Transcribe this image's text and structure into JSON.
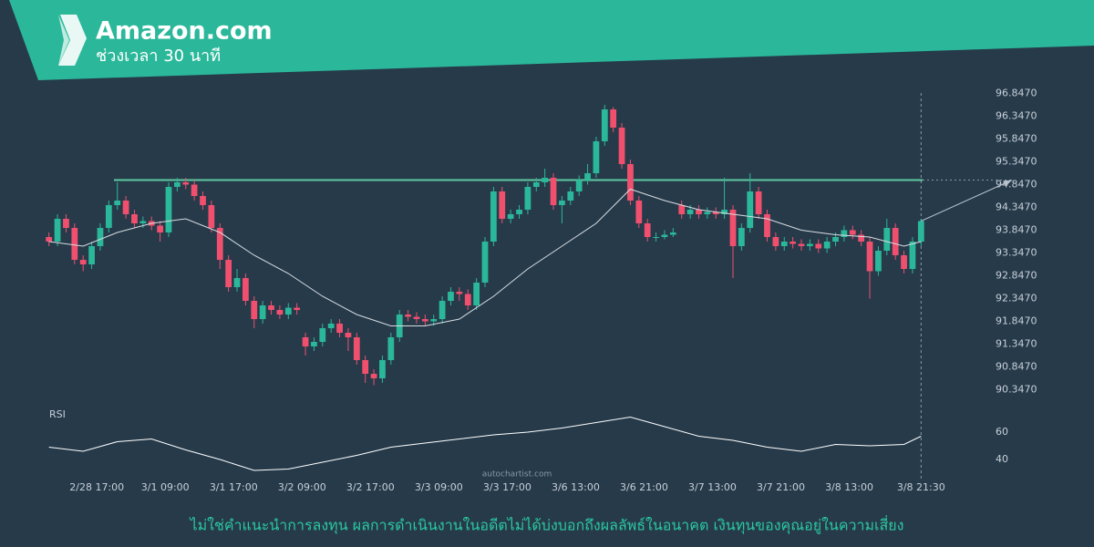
{
  "chart_data": {
    "type": "candlestick",
    "title": "Amazon.com",
    "subtitle": "ช่วงเวลา 30 นาที",
    "disclaimer": "ไม่ใช่คำแนะนำการลงทุน ผลการดำเนินงานในอดีตไม่ได้บ่งบอกถึงผลลัพธ์ในอนาคต เงินทุนของคุณอยู่ในความเสี่ยง",
    "watermark": "autochartist.com",
    "up_color": "#2bb89a",
    "down_color": "#f0506e",
    "open": [
      93.7,
      93.6,
      94.1,
      93.9,
      93.2,
      93.1,
      93.5,
      93.9,
      94.4,
      94.5,
      94.2,
      94.0,
      94.05,
      93.95,
      93.8,
      94.8,
      94.9,
      94.85,
      94.6,
      94.4,
      93.9,
      93.2,
      92.6,
      92.8,
      92.3,
      91.9,
      92.2,
      92.1,
      92.0,
      92.15,
      91.5,
      91.3,
      91.4,
      91.7,
      91.8,
      91.6,
      91.5,
      91.0,
      90.7,
      90.6,
      91.0,
      91.5,
      92.0,
      91.95,
      91.9,
      91.85,
      91.9,
      92.3,
      92.5,
      92.45,
      92.2,
      92.7,
      93.6,
      94.7,
      94.1,
      94.2,
      94.3,
      94.8,
      94.9,
      95.0,
      94.4,
      94.5,
      94.7,
      94.95,
      95.1,
      95.8,
      96.5,
      96.1,
      95.3,
      94.5,
      94.0,
      93.7,
      93.7,
      93.75,
      94.4,
      94.2,
      94.3,
      94.2,
      94.25,
      94.2,
      94.3,
      93.5,
      93.9,
      94.7,
      94.2,
      93.7,
      93.5,
      93.6,
      93.55,
      93.5,
      93.55,
      93.45,
      93.6,
      93.7,
      93.85,
      93.75,
      93.6,
      92.95,
      93.4,
      93.9,
      93.3,
      93.0,
      93.6
    ],
    "high": [
      93.8,
      94.2,
      94.2,
      94.0,
      93.3,
      93.6,
      94.0,
      94.5,
      94.9,
      94.6,
      94.3,
      94.15,
      94.15,
      94.05,
      94.9,
      95.0,
      95.0,
      94.95,
      94.7,
      94.5,
      94.0,
      93.3,
      93.0,
      92.9,
      92.4,
      92.3,
      92.3,
      92.2,
      92.25,
      92.25,
      91.6,
      91.5,
      91.8,
      91.9,
      91.9,
      91.7,
      91.6,
      91.1,
      90.8,
      91.1,
      91.6,
      92.1,
      92.1,
      92.05,
      92.0,
      92.0,
      92.4,
      92.6,
      92.6,
      92.55,
      92.8,
      93.7,
      94.8,
      94.8,
      94.3,
      94.4,
      94.9,
      95.0,
      95.2,
      95.1,
      94.6,
      94.8,
      95.05,
      95.3,
      95.9,
      96.6,
      96.55,
      96.2,
      95.4,
      94.6,
      94.1,
      93.8,
      93.85,
      93.9,
      94.5,
      94.4,
      94.4,
      94.35,
      94.35,
      95.0,
      94.4,
      94.0,
      95.1,
      94.8,
      94.3,
      93.8,
      93.7,
      93.7,
      93.65,
      93.65,
      93.65,
      93.7,
      93.8,
      93.95,
      93.95,
      93.85,
      93.7,
      93.5,
      94.1,
      94.0,
      93.4,
      93.7,
      94.1
    ],
    "low": [
      93.5,
      93.5,
      93.8,
      93.1,
      92.95,
      93.0,
      93.4,
      93.8,
      94.3,
      94.1,
      93.9,
      93.9,
      93.85,
      93.6,
      93.7,
      94.7,
      94.75,
      94.5,
      94.3,
      93.8,
      93.0,
      92.5,
      92.5,
      92.2,
      91.7,
      91.8,
      92.0,
      91.9,
      91.9,
      92.0,
      91.1,
      91.2,
      91.3,
      91.6,
      91.5,
      91.2,
      90.9,
      90.5,
      90.45,
      90.5,
      90.9,
      91.4,
      91.85,
      91.8,
      91.75,
      91.75,
      91.8,
      92.2,
      92.3,
      92.1,
      92.1,
      92.6,
      93.5,
      94.0,
      94.0,
      94.1,
      94.2,
      94.7,
      94.8,
      94.3,
      94.0,
      94.4,
      94.6,
      94.85,
      95.0,
      95.7,
      96.0,
      95.2,
      94.4,
      93.9,
      93.6,
      93.6,
      93.65,
      93.7,
      94.1,
      94.1,
      94.1,
      94.1,
      94.1,
      94.1,
      92.8,
      93.4,
      93.8,
      94.1,
      93.6,
      93.4,
      93.4,
      93.45,
      93.4,
      93.4,
      93.35,
      93.35,
      93.5,
      93.6,
      93.65,
      93.5,
      92.35,
      92.85,
      93.3,
      93.2,
      92.9,
      92.9,
      93.5
    ],
    "close": [
      93.6,
      94.1,
      93.9,
      93.2,
      93.1,
      93.5,
      93.9,
      94.4,
      94.5,
      94.2,
      94.0,
      94.05,
      93.95,
      93.8,
      94.8,
      94.9,
      94.85,
      94.6,
      94.4,
      93.9,
      93.2,
      92.6,
      92.8,
      92.3,
      91.9,
      92.2,
      92.1,
      92.0,
      92.15,
      92.1,
      91.3,
      91.4,
      91.7,
      91.8,
      91.6,
      91.5,
      91.0,
      90.7,
      90.6,
      91.0,
      91.5,
      92.0,
      91.95,
      91.9,
      91.85,
      91.9,
      92.3,
      92.5,
      92.45,
      92.2,
      92.7,
      93.6,
      94.7,
      94.1,
      94.2,
      94.3,
      94.8,
      94.9,
      95.0,
      94.4,
      94.5,
      94.7,
      94.95,
      95.1,
      95.8,
      96.5,
      96.1,
      95.3,
      94.5,
      94.0,
      93.7,
      93.7,
      93.75,
      93.8,
      94.2,
      94.3,
      94.2,
      94.25,
      94.2,
      94.3,
      93.5,
      93.9,
      94.7,
      94.2,
      93.7,
      93.5,
      93.6,
      93.55,
      93.5,
      93.55,
      93.45,
      93.6,
      93.7,
      93.85,
      93.75,
      93.6,
      92.95,
      93.4,
      93.9,
      93.3,
      93.0,
      93.6,
      94.05
    ],
    "xlim": [
      -0.5,
      102.5
    ],
    "xticks": [
      {
        "value": 5.6,
        "label": "2/28 17:00"
      },
      {
        "value": 13.6,
        "label": "3/1 09:00"
      },
      {
        "value": 21.6,
        "label": "3/1 17:00"
      },
      {
        "value": 29.6,
        "label": "3/2 09:00"
      },
      {
        "value": 37.6,
        "label": "3/2 17:00"
      },
      {
        "value": 45.6,
        "label": "3/3 09:00"
      },
      {
        "value": 53.6,
        "label": "3/3 17:00"
      },
      {
        "value": 61.6,
        "label": "3/6 13:00"
      },
      {
        "value": 69.6,
        "label": "3/6 21:00"
      },
      {
        "value": 77.6,
        "label": "3/7 13:00"
      },
      {
        "value": 85.6,
        "label": "3/7 21:00"
      },
      {
        "value": 93.6,
        "label": "3/8 13:00"
      },
      {
        "value": 102,
        "label": "3/8 21:30"
      }
    ],
    "ylim": [
      90.1,
      97.3
    ],
    "yticks": [
      {
        "value": 96.847,
        "label": "96.8470"
      },
      {
        "value": 96.347,
        "label": "96.3470"
      },
      {
        "value": 95.847,
        "label": "95.8470"
      },
      {
        "value": 95.347,
        "label": "95.3470"
      },
      {
        "value": 94.847,
        "label": "94.8470"
      },
      {
        "value": 94.347,
        "label": "94.3470"
      },
      {
        "value": 93.847,
        "label": "93.8470"
      },
      {
        "value": 93.347,
        "label": "93.3470"
      },
      {
        "value": 92.847,
        "label": "92.8470"
      },
      {
        "value": 92.347,
        "label": "92.3470"
      },
      {
        "value": 91.847,
        "label": "91.8470"
      },
      {
        "value": 91.347,
        "label": "91.3470"
      },
      {
        "value": 90.847,
        "label": "90.8470"
      },
      {
        "value": 90.347,
        "label": "90.3470"
      }
    ],
    "resistance": 94.95,
    "resistance_color": "#5fc9a0",
    "ma": {
      "color": "#d8dde2",
      "x": [
        0,
        4,
        8,
        12,
        16,
        20,
        24,
        28,
        32,
        36,
        40,
        44,
        48,
        52,
        56,
        60,
        64,
        68,
        72,
        76,
        80,
        84,
        88,
        92,
        96,
        100,
        102
      ],
      "values": [
        93.6,
        93.5,
        93.8,
        94.0,
        94.1,
        93.8,
        93.3,
        92.9,
        92.4,
        92.0,
        91.75,
        91.75,
        91.9,
        92.4,
        93.0,
        93.5,
        94.0,
        94.75,
        94.5,
        94.3,
        94.2,
        94.1,
        93.85,
        93.75,
        93.7,
        93.5,
        93.6
      ]
    },
    "rsi": {
      "label": "RSI",
      "color": "#ffffff",
      "ylim": [
        25,
        75
      ],
      "yticks": [
        60,
        40
      ],
      "x": [
        0,
        4,
        8,
        12,
        16,
        20,
        24,
        28,
        32,
        36,
        40,
        44,
        48,
        52,
        56,
        60,
        64,
        68,
        72,
        76,
        80,
        84,
        88,
        92,
        96,
        100,
        102
      ],
      "values": [
        49,
        46,
        53,
        55,
        47,
        40,
        32,
        33,
        38,
        43,
        49,
        52,
        55,
        58,
        60,
        63,
        67,
        71,
        64,
        57,
        54,
        49,
        46,
        51,
        50,
        51,
        57
      ]
    }
  }
}
